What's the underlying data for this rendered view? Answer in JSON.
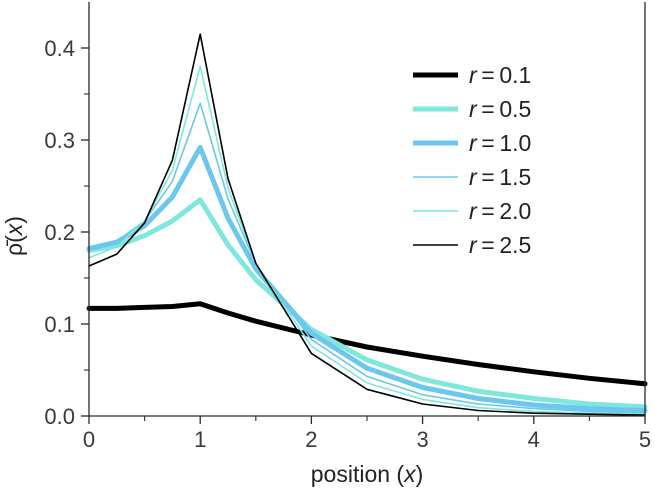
{
  "chart_data": {
    "type": "line",
    "xlabel_main": "position (",
    "xlabel_var": "x",
    "xlabel_close": ")",
    "ylabel_main": "ρ̄(",
    "ylabel_var": "x",
    "ylabel_close": ")",
    "xlim": [
      0,
      5
    ],
    "ylim": [
      0,
      0.45
    ],
    "x_ticks": [
      0,
      1,
      2,
      3,
      4,
      5
    ],
    "x_tick_labels": [
      "0",
      "1",
      "2",
      "3",
      "4",
      "5"
    ],
    "y_ticks": [
      0.0,
      0.1,
      0.2,
      0.3,
      0.4
    ],
    "y_tick_labels": [
      "0.0",
      "0.1",
      "0.2",
      "0.3",
      "0.4"
    ],
    "grid": false,
    "legend_position": "top-right",
    "legend_var": "r",
    "legend_eq": "=",
    "series": [
      {
        "name": "0.1",
        "color": "#000000",
        "weight": "thick",
        "x": [
          0,
          0.25,
          0.5,
          0.75,
          1.0,
          1.25,
          1.5,
          2.0,
          2.5,
          3.0,
          3.5,
          4.0,
          4.5,
          5.0
        ],
        "values": [
          0.117,
          0.117,
          0.118,
          0.119,
          0.122,
          0.112,
          0.103,
          0.088,
          0.075,
          0.065,
          0.056,
          0.048,
          0.041,
          0.035
        ]
      },
      {
        "name": "0.5",
        "color": "#7fe7dc",
        "weight": "thick",
        "x": [
          0,
          0.25,
          0.5,
          0.75,
          1.0,
          1.25,
          1.5,
          2.0,
          2.5,
          3.0,
          3.5,
          4.0,
          4.5,
          5.0
        ],
        "values": [
          0.18,
          0.185,
          0.196,
          0.212,
          0.235,
          0.186,
          0.148,
          0.094,
          0.061,
          0.04,
          0.027,
          0.019,
          0.013,
          0.01
        ]
      },
      {
        "name": "1.0",
        "color": "#6cc7ef",
        "weight": "thick",
        "x": [
          0,
          0.25,
          0.5,
          0.75,
          1.0,
          1.25,
          1.5,
          2.0,
          2.5,
          3.0,
          3.5,
          4.0,
          4.5,
          5.0
        ],
        "values": [
          0.182,
          0.189,
          0.207,
          0.238,
          0.292,
          0.215,
          0.16,
          0.09,
          0.052,
          0.031,
          0.019,
          0.012,
          0.008,
          0.006
        ]
      },
      {
        "name": "1.5",
        "color": "#6cc7ef",
        "weight": "thin",
        "x": [
          0,
          0.25,
          0.5,
          0.75,
          1.0,
          1.25,
          1.5,
          2.0,
          2.5,
          3.0,
          3.5,
          4.0,
          4.5,
          5.0
        ],
        "values": [
          0.183,
          0.19,
          0.212,
          0.255,
          0.34,
          0.236,
          0.165,
          0.083,
          0.043,
          0.023,
          0.013,
          0.008,
          0.005,
          0.003
        ]
      },
      {
        "name": "2.0",
        "color": "#7fe7dc",
        "weight": "thin",
        "x": [
          0,
          0.25,
          0.5,
          0.75,
          1.0,
          1.25,
          1.5,
          2.0,
          2.5,
          3.0,
          3.5,
          4.0,
          4.5,
          5.0
        ],
        "values": [
          0.172,
          0.184,
          0.212,
          0.267,
          0.38,
          0.248,
          0.165,
          0.076,
          0.036,
          0.018,
          0.009,
          0.005,
          0.003,
          0.002
        ]
      },
      {
        "name": "2.5",
        "color": "#000000",
        "weight": "thin",
        "x": [
          0,
          0.25,
          0.5,
          0.75,
          1.0,
          1.25,
          1.5,
          2.0,
          2.5,
          3.0,
          3.5,
          4.0,
          4.5,
          5.0
        ],
        "values": [
          0.163,
          0.176,
          0.21,
          0.278,
          0.415,
          0.258,
          0.166,
          0.068,
          0.029,
          0.013,
          0.006,
          0.003,
          0.002,
          0.001
        ]
      }
    ]
  }
}
